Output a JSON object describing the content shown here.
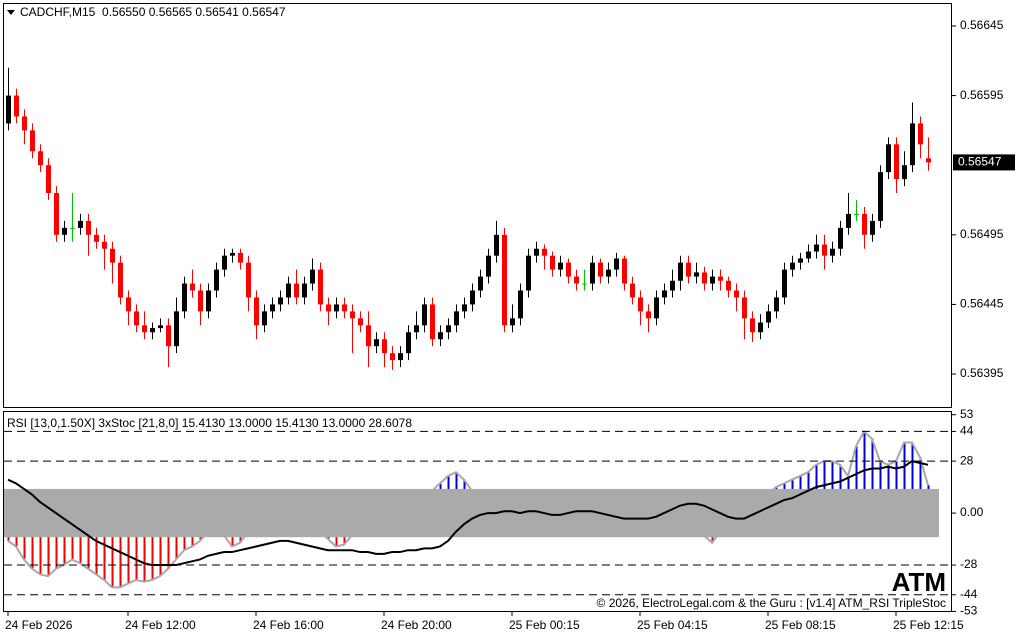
{
  "chart_data": [
    {
      "type": "candlestick",
      "title": "CADCHF,M15  0.56550 0.56565 0.56541 0.56547",
      "open": [
        0.56575,
        0.56595,
        0.5658,
        0.5657,
        0.56555,
        0.56545,
        0.56525,
        0.56495,
        0.565,
        0.565,
        0.56505,
        0.56495,
        0.5649,
        0.56485,
        0.56475,
        0.5645,
        0.5644,
        0.5643,
        0.56425,
        0.56428,
        0.5643,
        0.56415,
        0.5644,
        0.5646,
        0.56455,
        0.5644,
        0.56455,
        0.5647,
        0.5648,
        0.56482,
        0.56475,
        0.5645,
        0.5643,
        0.5644,
        0.56445,
        0.5645,
        0.5646,
        0.5645,
        0.5646,
        0.5647,
        0.56445,
        0.5644,
        0.56445,
        0.5644,
        0.56435,
        0.5643,
        0.56415,
        0.5642,
        0.5641,
        0.56405,
        0.5641,
        0.56425,
        0.5643,
        0.56445,
        0.5642,
        0.56425,
        0.5643,
        0.5644,
        0.56445,
        0.56455,
        0.56465,
        0.5648,
        0.56495,
        0.5643,
        0.56435,
        0.56455,
        0.5648,
        0.56485,
        0.5648,
        0.5647,
        0.56475,
        0.56465,
        0.5646,
        0.5646,
        0.56475,
        0.56465,
        0.5647,
        0.56478,
        0.5646,
        0.5645,
        0.5644,
        0.56435,
        0.5645,
        0.56455,
        0.56462,
        0.56475,
        0.56465,
        0.56468,
        0.5646,
        0.56465,
        0.56462,
        0.56455,
        0.5645,
        0.56435,
        0.56425,
        0.56432,
        0.5644,
        0.5645,
        0.5647,
        0.56475,
        0.56478,
        0.56483,
        0.56488,
        0.5648,
        0.56485,
        0.565,
        0.5651,
        0.5651,
        0.56495,
        0.56505,
        0.5654,
        0.5656,
        0.56535,
        0.56545,
        0.56575,
        0.5655
      ],
      "high": [
        0.56615,
        0.566,
        0.56585,
        0.56575,
        0.5656,
        0.5655,
        0.5653,
        0.56505,
        0.56525,
        0.5651,
        0.5651,
        0.565,
        0.56495,
        0.5649,
        0.5648,
        0.56455,
        0.56445,
        0.5644,
        0.56432,
        0.56435,
        0.56435,
        0.5645,
        0.56465,
        0.5647,
        0.5646,
        0.5646,
        0.56475,
        0.56485,
        0.56485,
        0.56485,
        0.5648,
        0.56455,
        0.56445,
        0.5645,
        0.56455,
        0.56465,
        0.5647,
        0.56465,
        0.56478,
        0.56475,
        0.5645,
        0.5645,
        0.5645,
        0.56445,
        0.5644,
        0.5644,
        0.56425,
        0.56425,
        0.56415,
        0.56415,
        0.5643,
        0.5644,
        0.5645,
        0.5645,
        0.5643,
        0.56435,
        0.56445,
        0.5645,
        0.5646,
        0.5647,
        0.56485,
        0.56505,
        0.565,
        0.56445,
        0.5646,
        0.56485,
        0.5649,
        0.56488,
        0.56483,
        0.5648,
        0.56478,
        0.5647,
        0.5647,
        0.5648,
        0.56478,
        0.56475,
        0.56482,
        0.5648,
        0.56465,
        0.56455,
        0.56445,
        0.56455,
        0.5646,
        0.5647,
        0.5648,
        0.5648,
        0.56475,
        0.56472,
        0.5647,
        0.5647,
        0.56465,
        0.5646,
        0.56455,
        0.5644,
        0.56438,
        0.56445,
        0.56455,
        0.56475,
        0.5648,
        0.56482,
        0.56488,
        0.56495,
        0.56495,
        0.5649,
        0.56505,
        0.56525,
        0.5652,
        0.56515,
        0.5651,
        0.56545,
        0.56565,
        0.56565,
        0.56555,
        0.5659,
        0.5658,
        0.56565
      ],
      "low": [
        0.5657,
        0.56575,
        0.5656,
        0.5655,
        0.5654,
        0.5652,
        0.5649,
        0.5649,
        0.5649,
        0.56495,
        0.5648,
        0.56485,
        0.5647,
        0.5646,
        0.56445,
        0.5643,
        0.56425,
        0.5642,
        0.5642,
        0.56425,
        0.564,
        0.5641,
        0.56435,
        0.5645,
        0.5643,
        0.56435,
        0.5645,
        0.56465,
        0.56475,
        0.5647,
        0.5644,
        0.5642,
        0.56425,
        0.56435,
        0.5644,
        0.56445,
        0.56445,
        0.56445,
        0.56455,
        0.5644,
        0.5643,
        0.56435,
        0.56435,
        0.5641,
        0.56425,
        0.564,
        0.5641,
        0.564,
        0.56398,
        0.564,
        0.56405,
        0.5642,
        0.56425,
        0.56415,
        0.56415,
        0.5642,
        0.56425,
        0.56435,
        0.5644,
        0.5645,
        0.5646,
        0.56475,
        0.56425,
        0.56425,
        0.5643,
        0.5645,
        0.56475,
        0.5647,
        0.56465,
        0.56465,
        0.5646,
        0.56455,
        0.56455,
        0.56455,
        0.5646,
        0.5646,
        0.56465,
        0.56455,
        0.56445,
        0.5643,
        0.56425,
        0.5643,
        0.56445,
        0.5645,
        0.56455,
        0.5646,
        0.5646,
        0.56455,
        0.56455,
        0.56455,
        0.5645,
        0.5644,
        0.5642,
        0.56418,
        0.5642,
        0.56428,
        0.56435,
        0.56445,
        0.56465,
        0.5647,
        0.56475,
        0.56478,
        0.5647,
        0.56475,
        0.5648,
        0.56495,
        0.56505,
        0.56485,
        0.5649,
        0.565,
        0.56535,
        0.56525,
        0.5653,
        0.5654,
        0.5655,
        0.56541
      ],
      "close": [
        0.56595,
        0.5658,
        0.5657,
        0.56555,
        0.56545,
        0.56525,
        0.56495,
        0.565,
        0.565,
        0.56505,
        0.56495,
        0.5649,
        0.56485,
        0.56475,
        0.5645,
        0.5644,
        0.5643,
        0.56425,
        0.56428,
        0.5643,
        0.56415,
        0.5644,
        0.5646,
        0.56455,
        0.5644,
        0.56455,
        0.5647,
        0.5648,
        0.56482,
        0.56475,
        0.5645,
        0.5643,
        0.5644,
        0.56445,
        0.5645,
        0.5646,
        0.5645,
        0.5646,
        0.5647,
        0.56445,
        0.5644,
        0.56445,
        0.5644,
        0.56435,
        0.5643,
        0.56415,
        0.5642,
        0.5641,
        0.56405,
        0.5641,
        0.56425,
        0.5643,
        0.56445,
        0.5642,
        0.56425,
        0.5643,
        0.5644,
        0.56445,
        0.56455,
        0.56465,
        0.5648,
        0.56495,
        0.5643,
        0.56435,
        0.56455,
        0.5648,
        0.56485,
        0.5648,
        0.5647,
        0.56475,
        0.56465,
        0.5646,
        0.5646,
        0.56475,
        0.56465,
        0.5647,
        0.56478,
        0.5646,
        0.5645,
        0.5644,
        0.56435,
        0.5645,
        0.56455,
        0.56462,
        0.56475,
        0.56465,
        0.56468,
        0.5646,
        0.56465,
        0.56462,
        0.56455,
        0.5645,
        0.56435,
        0.56425,
        0.56432,
        0.5644,
        0.5645,
        0.5647,
        0.56475,
        0.56478,
        0.56483,
        0.56488,
        0.5648,
        0.56485,
        0.565,
        0.5651,
        0.5651,
        0.56495,
        0.56505,
        0.5654,
        0.5656,
        0.56535,
        0.56545,
        0.56575,
        0.5656,
        0.56547
      ],
      "colors": {
        "up": "#000000",
        "down": "#ff0000",
        "doji": "#00c000"
      },
      "current_price": 0.56547,
      "xlim": [
        -0.625,
        118
      ],
      "xticks": [
        {
          "value": 0,
          "label": "24 Feb 2026"
        },
        {
          "value": 15,
          "label": "24 Feb 12:00"
        },
        {
          "value": 31,
          "label": "24 Feb 16:00"
        },
        {
          "value": 47,
          "label": "24 Feb 20:00"
        },
        {
          "value": 63,
          "label": "25 Feb 00:15"
        },
        {
          "value": 79,
          "label": "25 Feb 04:15"
        },
        {
          "value": 95,
          "label": "25 Feb 08:15"
        },
        {
          "value": 111,
          "label": "25 Feb 12:15"
        }
      ],
      "ylim": [
        0.563706,
        0.566615
      ],
      "yticks": [
        0.56645,
        0.56595,
        0.56495,
        0.56445,
        0.56395
      ]
    },
    {
      "type": "indicator",
      "title": "RSI [13,0,1.50X] 3xStoc [21,8,0] 15.4130 13.0000 15.4130 13.0000 28.6078",
      "histogram": [
        -15,
        -18,
        -25,
        -30,
        -33,
        -34,
        -30,
        -28,
        -25,
        -27,
        -30,
        -33,
        -36,
        -40,
        -40,
        -38,
        -36,
        -37,
        -36,
        -34,
        -30,
        -25,
        -20,
        -18,
        -15,
        -10,
        -8,
        -12,
        -18,
        -16,
        -10,
        -5,
        -2,
        0,
        -4,
        -8,
        -10,
        -8,
        -6,
        -10,
        -14,
        -18,
        -17,
        -12,
        -8,
        -5,
        -2,
        2,
        5,
        8,
        6,
        4,
        8,
        12,
        16,
        20,
        22,
        18,
        12,
        8,
        5,
        2,
        -3,
        -6,
        -4,
        0,
        3,
        6,
        5,
        2,
        0,
        -2,
        -4,
        -5,
        -3,
        0,
        2,
        4,
        3,
        0,
        -3,
        -6,
        -8,
        -10,
        -8,
        -6,
        -8,
        -12,
        -16,
        -10,
        -6,
        -2,
        0,
        4,
        8,
        10,
        14,
        16,
        18,
        20,
        22,
        26,
        28,
        28,
        26,
        20,
        36,
        44,
        40,
        28,
        26,
        28,
        38,
        38,
        30,
        15
      ],
      "line": [
        18,
        16,
        13,
        10,
        6,
        3,
        0,
        -3,
        -6,
        -9,
        -12,
        -15,
        -17,
        -19,
        -21,
        -23,
        -25,
        -27,
        -28,
        -28,
        -28,
        -28,
        -27,
        -26,
        -25,
        -23,
        -22,
        -21,
        -21,
        -20,
        -19,
        -18,
        -17,
        -16,
        -15,
        -15,
        -16,
        -17,
        -18,
        -19,
        -20,
        -20,
        -20,
        -20,
        -21,
        -21,
        -22,
        -22,
        -21,
        -21,
        -20,
        -20,
        -19,
        -19,
        -18,
        -15,
        -10,
        -6,
        -3,
        -1,
        0,
        0,
        1,
        1,
        0,
        1,
        1,
        0,
        -1,
        -1,
        0,
        1,
        1,
        1,
        0,
        -1,
        -2,
        -3,
        -3,
        -3,
        -3,
        -2,
        0,
        2,
        4,
        5,
        5,
        4,
        2,
        0,
        -2,
        -3,
        -3,
        -1,
        1,
        3,
        5,
        7,
        8,
        10,
        12,
        14,
        15,
        16,
        17,
        19,
        21,
        23,
        24,
        24,
        25,
        24,
        25,
        28,
        27,
        26
      ],
      "band": [
        -13,
        13
      ],
      "levels": [
        44,
        28,
        -28,
        -44
      ],
      "colors": {
        "positive": "#0000dd",
        "negative": "#ee0000",
        "envelope": "#a8a8a8",
        "line": "#000000",
        "band": "#aaaaaa",
        "level": "#000000"
      },
      "annotations": [
        "ATM",
        "© 2026, ElectroLegal.com & the Guru : [v1.4] ATM_RSI TripleStoc"
      ],
      "ylim": [
        -53.3,
        55
      ],
      "yticks": [
        53,
        44,
        28,
        {
          "value": 0,
          "label": "0.00"
        },
        -28,
        -44,
        -53
      ]
    }
  ]
}
